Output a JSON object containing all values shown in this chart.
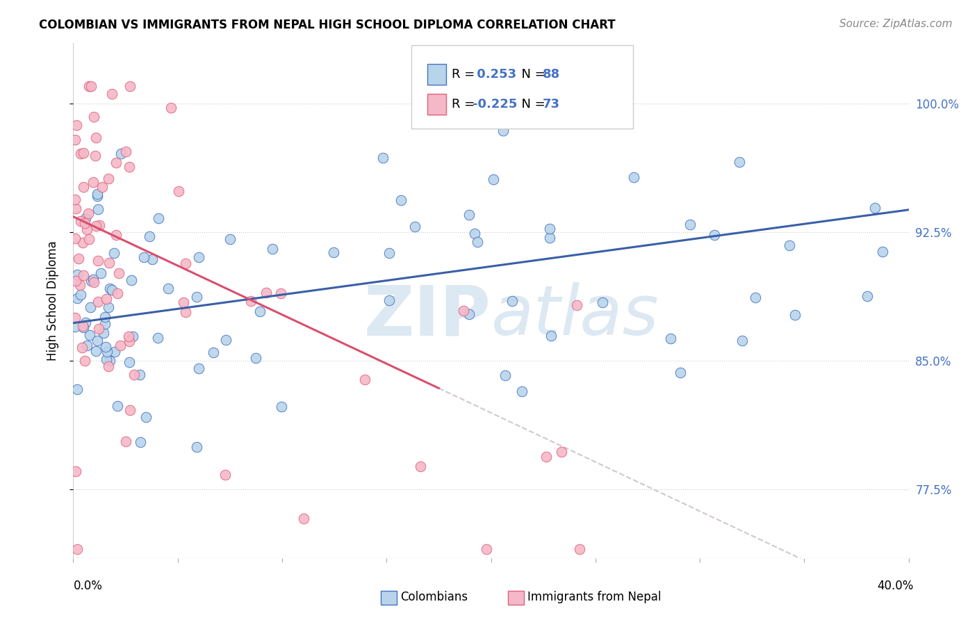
{
  "title": "COLOMBIAN VS IMMIGRANTS FROM NEPAL HIGH SCHOOL DIPLOMA CORRELATION CHART",
  "source": "Source: ZipAtlas.com",
  "ylabel": "High School Diploma",
  "yticks": [
    77.5,
    85.0,
    92.5,
    100.0
  ],
  "xlim": [
    0.0,
    0.4
  ],
  "ylim": [
    0.735,
    1.035
  ],
  "colombians_R": 0.253,
  "colombians_N": 88,
  "nepal_R": -0.225,
  "nepal_N": 73,
  "background_color": "#ffffff",
  "colombian_color": "#b8d4ea",
  "nepal_color": "#f5b8c8",
  "colombian_edge_color": "#4472c4",
  "nepal_edge_color": "#e0607a",
  "trend_colombian_color": "#3a5fa8",
  "trend_nepal_color": "#d94f6e",
  "trend_dashed_color": "#d0c8d0",
  "colombian_trend_x": [
    0.0,
    0.4
  ],
  "colombian_trend_y": [
    0.872,
    0.938
  ],
  "nepal_trend_x": [
    0.0,
    0.175
  ],
  "nepal_trend_y": [
    0.934,
    0.834
  ],
  "dashed_trend_x": [
    0.175,
    0.4
  ],
  "dashed_trend_y": [
    0.834,
    0.705
  ],
  "watermark_text": "ZIPatlas",
  "watermark_color": "#dce8f2",
  "title_fontsize": 12,
  "source_fontsize": 11,
  "axis_label_fontsize": 12,
  "tick_label_fontsize": 12,
  "legend_fontsize": 13
}
